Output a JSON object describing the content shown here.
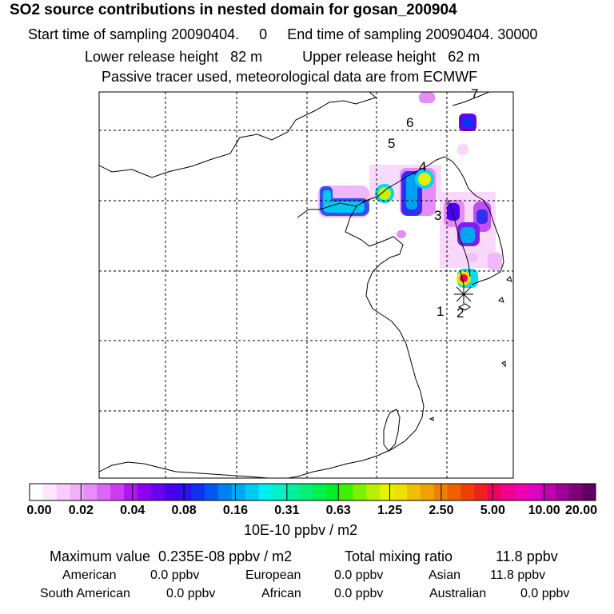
{
  "header": {
    "title": "SO2 source contributions in nested domain for gosan_200904",
    "start_label": "Start time of sampling 20090404.     0",
    "end_label": "End time of sampling 20090404. 30000",
    "lower_label": "Lower release height   82 m",
    "upper_label": "Upper release height   62 m",
    "note": "Passive tracer used, meteorological data are from ECMWF"
  },
  "map": {
    "source_labels": [
      "1",
      "2",
      "3",
      "4",
      "5",
      "6",
      "7"
    ]
  },
  "colorbar": {
    "ticks": [
      "0.00",
      "0.02",
      "0.04",
      "0.08",
      "0.16",
      "0.31",
      "0.63",
      "1.25",
      "2.50",
      "5.00",
      "10.00",
      "20.00"
    ],
    "colors": [
      "#ffffff",
      "#fde6fe",
      "#f9ccfc",
      "#f2b0fa",
      "#e98cf8",
      "#de66f6",
      "#cc3cf3",
      "#b314f2",
      "#8e00f2",
      "#6a00f0",
      "#4a00f0",
      "#2a10f2",
      "#1030f2",
      "#0058f2",
      "#0080f2",
      "#00a8f2",
      "#00ccf2",
      "#00f0f0",
      "#00f0c8",
      "#00f0a0",
      "#00f078",
      "#00f050",
      "#00f028",
      "#40f000",
      "#80f000",
      "#b8f000",
      "#e8f000",
      "#f0e000",
      "#f0c000",
      "#f0a000",
      "#f08000",
      "#f06000",
      "#f04000",
      "#f02020",
      "#f00060",
      "#f00090",
      "#f000b0",
      "#e000c0",
      "#c000b0",
      "#a00098",
      "#80007a",
      "#600060"
    ],
    "unit": "10E-10 ppbv / m2"
  },
  "stats": {
    "max_label": "Maximum value  0.235E-08 ppbv / m2",
    "total_label": "Total mixing ratio",
    "total_value": "11.8 ppbv",
    "regions": [
      {
        "name": "American",
        "value": "0.0 ppbv"
      },
      {
        "name": "European",
        "value": "0.0 ppbv"
      },
      {
        "name": "Asian",
        "value": "11.8 ppbv"
      },
      {
        "name": "South American",
        "value": "0.0 ppbv"
      },
      {
        "name": "African",
        "value": "0.0 ppbv"
      },
      {
        "name": "Australian",
        "value": "0.0 ppbv"
      }
    ]
  }
}
